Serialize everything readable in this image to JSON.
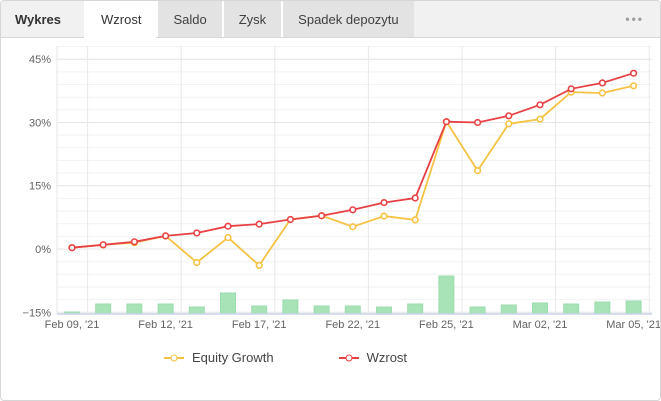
{
  "header": {
    "title": "Wykres",
    "tabs": [
      {
        "label": "Wzrost",
        "active": true
      },
      {
        "label": "Saldo",
        "active": false
      },
      {
        "label": "Zysk",
        "active": false
      },
      {
        "label": "Spadek depozytu",
        "active": false
      }
    ],
    "menu_glyph": "•••"
  },
  "colors": {
    "equity": "#f6c243",
    "wzrost": "#e84145",
    "bars_fill": "#a8e3b8",
    "bars_stroke": "#9cdcae",
    "grid_major": "#e4e4e4",
    "grid_minor": "#f2f2f2",
    "grid_vertical": "#e9e9e9",
    "baseline": "#c9d2e9",
    "tick_text": "#636363"
  },
  "chart_data": {
    "type": "line+bar",
    "n_points": 19,
    "x_tick_labels": [
      "Feb 09, '21",
      "Feb 12, '21",
      "Feb 17, '21",
      "Feb 22, '21",
      "Feb 25, '21",
      "Mar 02, '21",
      "Mar 05, '21"
    ],
    "x_tick_indices": [
      0,
      3,
      6,
      9,
      12,
      15,
      18
    ],
    "y_ticks": [
      {
        "label": "45%",
        "value": 45
      },
      {
        "label": "30%",
        "value": 30
      },
      {
        "label": "15%",
        "value": 15
      },
      {
        "label": "0%",
        "value": 0
      },
      {
        "label": "−15%",
        "value": -15
      }
    ],
    "ylabel": "",
    "xlabel": "",
    "ylim": [
      -15.5,
      48
    ],
    "grid": true,
    "legend_position": "bottom-center",
    "series": [
      {
        "name": "Equity Growth",
        "type": "line",
        "color": "#f6c243",
        "values": [
          0.3,
          1.0,
          1.5,
          3.1,
          -3.2,
          2.7,
          -3.9,
          7.0,
          7.9,
          5.3,
          7.8,
          6.9,
          30.2,
          18.6,
          29.7,
          30.8,
          37.2,
          37.0,
          38.7
        ]
      },
      {
        "name": "Wzrost",
        "type": "line",
        "color": "#e84145",
        "values": [
          0.3,
          1.0,
          1.7,
          3.1,
          3.8,
          5.4,
          5.9,
          7.0,
          7.9,
          9.3,
          11.0,
          12.1,
          30.2,
          30.0,
          31.6,
          34.2,
          38.0,
          39.4,
          41.7
        ]
      }
    ],
    "bars": {
      "type": "bar",
      "color": "#a8e3b8",
      "units": "relative (unlabeled axis)",
      "values": [
        2,
        10,
        10,
        10,
        7,
        21,
        8,
        14,
        8,
        8,
        7,
        10,
        38,
        7,
        9,
        11,
        10,
        12,
        13
      ]
    }
  },
  "legend": {
    "items": [
      {
        "label": "Equity Growth"
      },
      {
        "label": "Wzrost"
      }
    ]
  }
}
